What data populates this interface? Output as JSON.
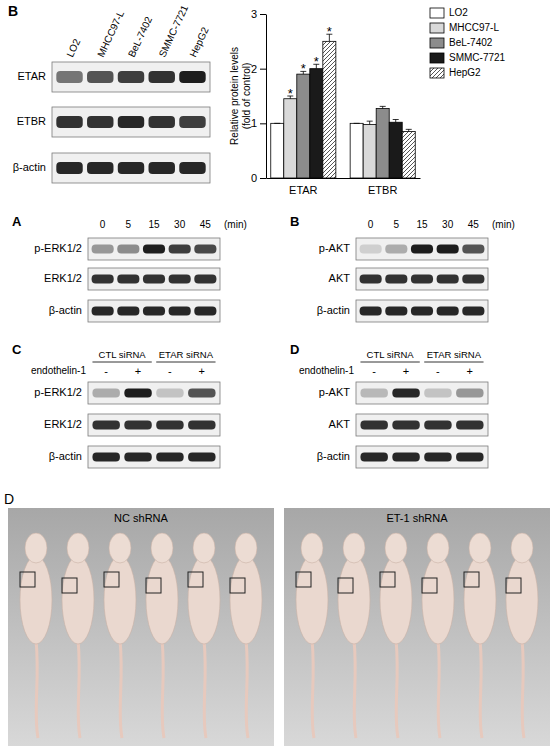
{
  "chart_data": {
    "type": "bar",
    "panel_label": "B",
    "categories": [
      "ETAR",
      "ETBR"
    ],
    "y_label": [
      "Relative protein levels",
      "(fold of control)"
    ],
    "ylim": [
      0,
      3
    ],
    "yticks": [
      0,
      1,
      2,
      3
    ],
    "legend": "right",
    "series": [
      {
        "name": "LO2",
        "color": "#ffffff",
        "values": [
          1.0,
          1.0
        ],
        "errors": [
          0.0,
          0.0
        ]
      },
      {
        "name": "MHCC97-L",
        "color": "#d9d9d9",
        "values": [
          1.45,
          0.98
        ],
        "errors": [
          0.05,
          0.06
        ]
      },
      {
        "name": "BeL-7402",
        "color": "#8c8c8c",
        "values": [
          1.9,
          1.27
        ],
        "errors": [
          0.05,
          0.04
        ]
      },
      {
        "name": "SMMC-7721",
        "color": "#1a1a1a",
        "values": [
          2.0,
          1.02
        ],
        "errors": [
          0.08,
          0.05
        ]
      },
      {
        "name": "HepG2",
        "color": "#555555",
        "marker": "hatch",
        "values": [
          2.5,
          0.85
        ],
        "errors": [
          0.13,
          0.04
        ]
      }
    ],
    "annotations": [
      {
        "text": "*",
        "series": "MHCC97-L",
        "category": "ETAR"
      },
      {
        "text": "*",
        "series": "BeL-7402",
        "category": "ETAR"
      },
      {
        "text": "*",
        "series": "SMMC-7721",
        "category": "ETAR"
      },
      {
        "text": "*",
        "series": "HepG2",
        "category": "ETAR"
      }
    ]
  },
  "expression_blot": {
    "columns": [
      "LO2",
      "MHCC97-L",
      "BeL-7402",
      "SMMC-7721",
      "HepG2"
    ],
    "rows": [
      {
        "name": "ETAR",
        "bands": [
          0.55,
          0.7,
          0.8,
          0.85,
          0.95
        ]
      },
      {
        "name": "ETBR",
        "bands": [
          0.85,
          0.85,
          0.9,
          0.85,
          0.8
        ]
      },
      {
        "name": "β-actin",
        "bands": [
          0.9,
          0.9,
          0.9,
          0.9,
          0.9
        ]
      }
    ]
  },
  "time_course": [
    {
      "label": "A",
      "times": [
        "0",
        "5",
        "15",
        "30",
        "45"
      ],
      "unit": "(min)",
      "rows": [
        {
          "name": "p-ERK1/2",
          "bands": [
            0.4,
            0.45,
            0.95,
            0.8,
            0.75
          ]
        },
        {
          "name": "ERK1/2",
          "bands": [
            0.85,
            0.85,
            0.85,
            0.85,
            0.85
          ]
        },
        {
          "name": "β-actin",
          "bands": [
            0.9,
            0.9,
            0.9,
            0.9,
            0.9
          ]
        }
      ]
    },
    {
      "label": "B",
      "times": [
        "0",
        "5",
        "15",
        "30",
        "45"
      ],
      "unit": "(min)",
      "rows": [
        {
          "name": "p-AKT",
          "bands": [
            0.15,
            0.3,
            0.95,
            0.95,
            0.7
          ]
        },
        {
          "name": "AKT",
          "bands": [
            0.85,
            0.85,
            0.85,
            0.85,
            0.85
          ]
        },
        {
          "name": "β-actin",
          "bands": [
            0.9,
            0.9,
            0.9,
            0.9,
            0.9
          ]
        }
      ]
    }
  ],
  "knockdown": [
    {
      "label": "C",
      "groups": [
        "CTL siRNA",
        "ETAR siRNA"
      ],
      "treatment": "endothelin-1",
      "signs": [
        "-",
        "+",
        "-",
        "+"
      ],
      "rows": [
        {
          "name": "p-ERK1/2",
          "bands": [
            0.3,
            0.95,
            0.2,
            0.7
          ]
        },
        {
          "name": "ERK1/2",
          "bands": [
            0.85,
            0.85,
            0.85,
            0.85
          ]
        },
        {
          "name": "β-actin",
          "bands": [
            0.9,
            0.9,
            0.9,
            0.9
          ]
        }
      ]
    },
    {
      "label": "D",
      "groups": [
        "CTL siRNA",
        "ETAR siRNA"
      ],
      "treatment": "endothelin-1",
      "signs": [
        "-",
        "+",
        "-",
        "+"
      ],
      "rows": [
        {
          "name": "p-AKT",
          "bands": [
            0.25,
            0.9,
            0.2,
            0.4
          ]
        },
        {
          "name": "AKT",
          "bands": [
            0.85,
            0.85,
            0.85,
            0.85
          ]
        },
        {
          "name": "β-actin",
          "bands": [
            0.9,
            0.9,
            0.9,
            0.9
          ]
        }
      ]
    }
  ],
  "photos": {
    "label": "D",
    "panels": [
      "NC shRNA",
      "ET-1 shRNA"
    ]
  }
}
